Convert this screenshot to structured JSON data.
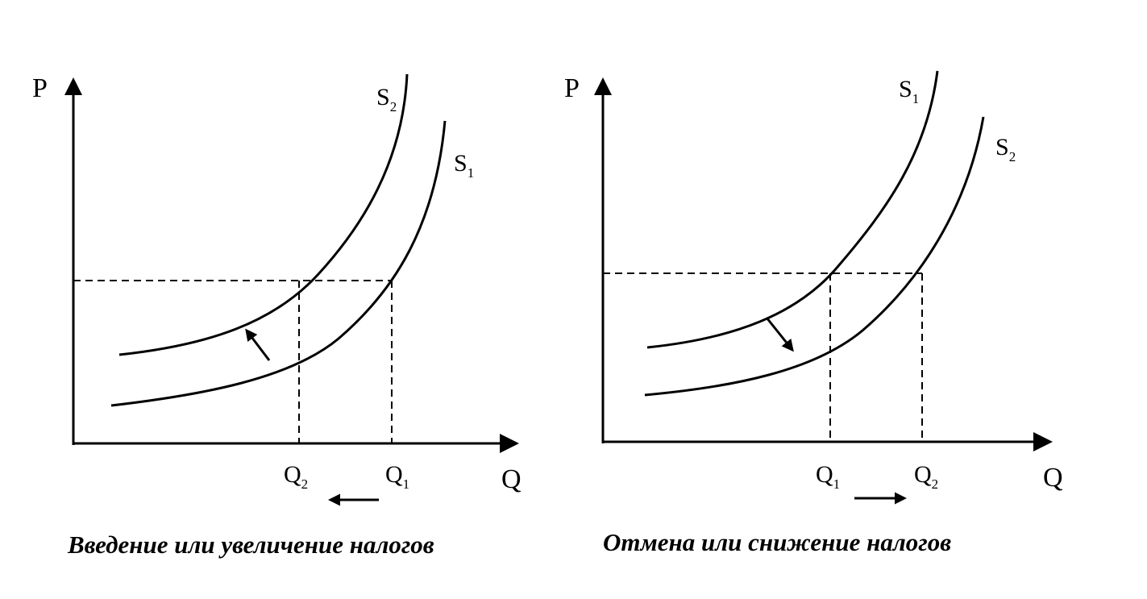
{
  "left_panel": {
    "y_axis_label": "P",
    "x_axis_label": "Q",
    "curve_upper": {
      "main": "S",
      "sub": "2"
    },
    "curve_lower": {
      "main": "S",
      "sub": "1"
    },
    "q_left": {
      "main": "Q",
      "sub": "2"
    },
    "q_right": {
      "main": "Q",
      "sub": "1"
    },
    "caption": "Введение или увеличение налогов"
  },
  "right_panel": {
    "y_axis_label": "P",
    "x_axis_label": "Q",
    "curve_upper": {
      "main": "S",
      "sub": "1"
    },
    "curve_lower": {
      "main": "S",
      "sub": "2"
    },
    "q_left": {
      "main": "Q",
      "sub": "1"
    },
    "q_right": {
      "main": "Q",
      "sub": "2"
    },
    "caption": "Отмена или снижение налогов"
  }
}
